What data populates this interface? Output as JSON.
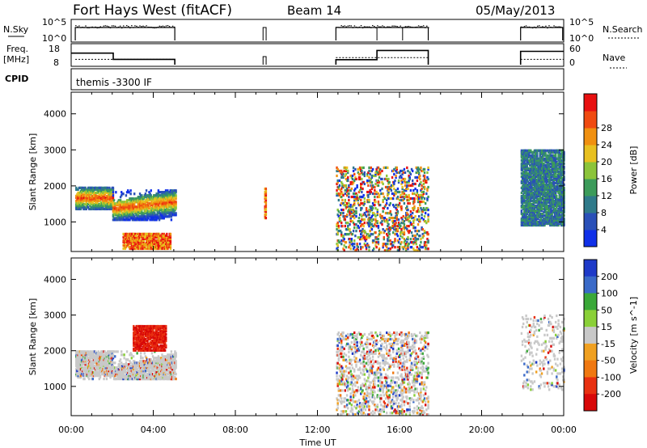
{
  "header": {
    "station": "Fort Hays West (fitACF)",
    "beam": "Beam 14",
    "date": "05/May/2013"
  },
  "top_panels": {
    "nsky_label": "N.Sky",
    "nsky_ticks": [
      "10^5",
      "10^0"
    ],
    "nsearch_label": "N.Search",
    "nsearch_ticks": [
      "10^5",
      "10^0"
    ],
    "freq_label_1": "Freq.",
    "freq_label_2": "[MHz]",
    "freq_ticks": [
      "18",
      "8"
    ],
    "nave_label": "Nave",
    "nave_ticks": [
      "60",
      "0"
    ],
    "cpid_label": "CPID",
    "cpid_value": "themis -3300 IF",
    "freq_trace": [
      [
        0,
        14.5
      ],
      [
        2.05,
        14.5
      ],
      [
        2.05,
        11
      ],
      [
        5.05,
        11
      ],
      [
        5.05,
        8
      ]
    ],
    "freq_trace_2": [
      [
        12.9,
        8
      ],
      [
        12.9,
        10.8
      ],
      [
        14.9,
        10.8
      ],
      [
        14.9,
        16
      ],
      [
        17.4,
        16
      ],
      [
        17.4,
        8
      ]
    ],
    "freq_trace_3": [
      [
        21.9,
        8
      ],
      [
        21.9,
        15.5
      ],
      [
        24,
        15.5
      ]
    ]
  },
  "chart_data": [
    {
      "type": "heatmap",
      "name": "power",
      "xlabel": "Time UT",
      "ylabel": "Slant Range [km]",
      "xlim": [
        0,
        24
      ],
      "ylim": [
        180,
        4600
      ],
      "xticks": [
        "00:00",
        "04:00",
        "08:00",
        "12:00",
        "16:00",
        "20:00",
        "00:00"
      ],
      "yticks": [
        1000,
        2000,
        3000,
        4000
      ],
      "colorbar": {
        "label": "Power [dB]",
        "ticks": [
          4,
          8,
          12,
          16,
          20,
          24,
          28
        ],
        "colors": [
          "#1030e8",
          "#2a50b8",
          "#2f7a8a",
          "#3c9b5a",
          "#8cc43a",
          "#e8c020",
          "#f09010",
          "#f04a10",
          "#e81010"
        ]
      },
      "regions": [
        {
          "t": [
            0.2,
            2.0
          ],
          "r": [
            1350,
            1950
          ],
          "v": "mid"
        },
        {
          "t": [
            2.0,
            5.1
          ],
          "r": [
            1050,
            1900
          ],
          "v": "mid"
        },
        {
          "t": [
            2.5,
            4.8
          ],
          "r": [
            250,
            700
          ],
          "v": "high"
        },
        {
          "t": [
            9.4,
            9.45
          ],
          "r": [
            1100,
            1950
          ],
          "v": "high"
        },
        {
          "t": [
            12.9,
            17.4
          ],
          "r": [
            200,
            2500
          ],
          "v": "mixed"
        },
        {
          "t": [
            21.9,
            24.0
          ],
          "r": [
            900,
            3000
          ],
          "v": "low"
        }
      ]
    },
    {
      "type": "heatmap",
      "name": "velocity",
      "xlabel": "Time UT",
      "ylabel": "Slant Range [km]",
      "xlim": [
        0,
        24
      ],
      "ylim": [
        180,
        4600
      ],
      "xticks": [
        "00:00",
        "04:00",
        "08:00",
        "12:00",
        "16:00",
        "20:00",
        "00:00"
      ],
      "yticks": [
        1000,
        2000,
        3000,
        4000
      ],
      "colorbar": {
        "label": "Velocity [m s^-1]",
        "ticks": [
          "200",
          "100",
          "50",
          "15",
          "-15",
          "-50",
          "-100",
          "-200"
        ],
        "colors": [
          "#1e3ac8",
          "#3a6ac8",
          "#3aa838",
          "#8ad038",
          "#c8c8c8",
          "#f0a020",
          "#f07810",
          "#e83010",
          "#d80808"
        ]
      },
      "regions": [
        {
          "t": [
            0.2,
            5.1
          ],
          "r": [
            1200,
            2000
          ],
          "v": "near-zero"
        },
        {
          "t": [
            3.0,
            4.6
          ],
          "r": [
            2000,
            2700
          ],
          "v": "negative"
        },
        {
          "t": [
            12.9,
            17.4
          ],
          "r": [
            200,
            2500
          ],
          "v": "mixed"
        },
        {
          "t": [
            21.9,
            24.0
          ],
          "r": [
            900,
            3000
          ],
          "v": "near-zero"
        }
      ]
    }
  ]
}
